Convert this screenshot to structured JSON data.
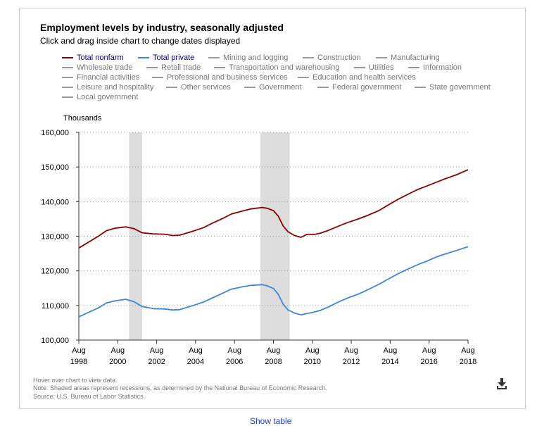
{
  "header": {
    "title": "Employment levels by industry, seasonally adjusted",
    "subtitle": "Click and drag inside chart to change dates displayed"
  },
  "legend": [
    {
      "label": "Total nonfarm",
      "color": "#8b0000",
      "active": true
    },
    {
      "label": "Total private",
      "color": "#3d86d8",
      "active": true
    },
    {
      "label": "Mining and logging",
      "color": "#999999",
      "active": false
    },
    {
      "label": "Construction",
      "color": "#999999",
      "active": false
    },
    {
      "label": "Manufacturing",
      "color": "#999999",
      "active": false
    },
    {
      "label": "Wholesale trade",
      "color": "#999999",
      "active": false
    },
    {
      "label": "Retail trade",
      "color": "#999999",
      "active": false
    },
    {
      "label": "Transportation and warehousing",
      "color": "#999999",
      "active": false
    },
    {
      "label": "Utilities",
      "color": "#999999",
      "active": false
    },
    {
      "label": "Information",
      "color": "#999999",
      "active": false
    },
    {
      "label": "Financial activities",
      "color": "#999999",
      "active": false
    },
    {
      "label": "Professional and business services",
      "color": "#999999",
      "active": false
    },
    {
      "label": "Education and health services",
      "color": "#999999",
      "active": false
    },
    {
      "label": "Leisure and hospitality",
      "color": "#999999",
      "active": false
    },
    {
      "label": "Other services",
      "color": "#999999",
      "active": false
    },
    {
      "label": "Government",
      "color": "#999999",
      "active": false
    },
    {
      "label": "Federal government",
      "color": "#999999",
      "active": false
    },
    {
      "label": "State government",
      "color": "#999999",
      "active": false
    },
    {
      "label": "Local government",
      "color": "#999999",
      "active": false
    }
  ],
  "footnotes": {
    "hover": "Hover over chart to view data.",
    "note": "Note: Shaded areas represent recessions, as determined by the National Bureau of Economic Research.",
    "source": "Source: U.S. Bureau of Labor Statistics."
  },
  "download_icon": "download-icon",
  "show_table_label": "Show table",
  "chart_data": {
    "type": "line",
    "ylabel": "Thousands",
    "ylim": [
      100000,
      160000
    ],
    "yticks": [
      100000,
      110000,
      120000,
      130000,
      140000,
      150000,
      160000
    ],
    "ytick_labels": [
      "100,000",
      "110,000",
      "120,000",
      "130,000",
      "140,000",
      "150,000",
      "160,000"
    ],
    "xlim": [
      "1998-08",
      "2018-08"
    ],
    "xticks": [
      {
        "month": "Aug",
        "year": "1998",
        "date": "1998-08"
      },
      {
        "month": "Aug",
        "year": "2000",
        "date": "2000-08"
      },
      {
        "month": "Aug",
        "year": "2002",
        "date": "2002-08"
      },
      {
        "month": "Aug",
        "year": "2004",
        "date": "2004-08"
      },
      {
        "month": "Aug",
        "year": "2006",
        "date": "2006-08"
      },
      {
        "month": "Aug",
        "year": "2008",
        "date": "2008-08"
      },
      {
        "month": "Aug",
        "year": "2010",
        "date": "2010-08"
      },
      {
        "month": "Aug",
        "year": "2012",
        "date": "2012-08"
      },
      {
        "month": "Aug",
        "year": "2014",
        "date": "2014-08"
      },
      {
        "month": "Aug",
        "year": "2016",
        "date": "2016-08"
      },
      {
        "month": "Aug",
        "year": "2018",
        "date": "2018-08"
      }
    ],
    "grid": true,
    "recessions": [
      {
        "start": "2001-03",
        "end": "2001-11"
      },
      {
        "start": "2007-12",
        "end": "2009-06"
      }
    ],
    "series": [
      {
        "name": "Total nonfarm",
        "color": "#8b0000",
        "points": [
          [
            "1998-08",
            126600
          ],
          [
            "1999-01",
            128000
          ],
          [
            "1999-08",
            130000
          ],
          [
            "2000-01",
            131600
          ],
          [
            "2000-06",
            132300
          ],
          [
            "2001-01",
            132700
          ],
          [
            "2001-06",
            132200
          ],
          [
            "2001-11",
            131000
          ],
          [
            "2002-06",
            130700
          ],
          [
            "2003-01",
            130600
          ],
          [
            "2003-06",
            130200
          ],
          [
            "2003-10",
            130300
          ],
          [
            "2004-06",
            131400
          ],
          [
            "2005-01",
            132500
          ],
          [
            "2005-06",
            133700
          ],
          [
            "2006-01",
            135200
          ],
          [
            "2006-06",
            136400
          ],
          [
            "2007-01",
            137300
          ],
          [
            "2007-06",
            137900
          ],
          [
            "2008-01",
            138300
          ],
          [
            "2008-04",
            138100
          ],
          [
            "2008-08",
            137400
          ],
          [
            "2008-11",
            135800
          ],
          [
            "2009-02",
            133000
          ],
          [
            "2009-05",
            131300
          ],
          [
            "2009-09",
            130200
          ],
          [
            "2010-01",
            129700
          ],
          [
            "2010-05",
            130600
          ],
          [
            "2010-09",
            130500
          ],
          [
            "2011-01",
            130900
          ],
          [
            "2011-06",
            131700
          ],
          [
            "2012-01",
            133100
          ],
          [
            "2012-06",
            134000
          ],
          [
            "2013-01",
            135100
          ],
          [
            "2013-06",
            136000
          ],
          [
            "2014-01",
            137400
          ],
          [
            "2014-06",
            138800
          ],
          [
            "2015-01",
            140700
          ],
          [
            "2015-06",
            141900
          ],
          [
            "2016-01",
            143500
          ],
          [
            "2016-06",
            144400
          ],
          [
            "2017-01",
            145700
          ],
          [
            "2017-06",
            146600
          ],
          [
            "2018-01",
            147800
          ],
          [
            "2018-08",
            149200
          ]
        ]
      },
      {
        "name": "Total private",
        "color": "#3d86d8",
        "points": [
          [
            "1998-08",
            106700
          ],
          [
            "1999-01",
            107800
          ],
          [
            "1999-08",
            109300
          ],
          [
            "2000-01",
            110700
          ],
          [
            "2000-06",
            111300
          ],
          [
            "2001-01",
            111800
          ],
          [
            "2001-06",
            111100
          ],
          [
            "2001-11",
            109700
          ],
          [
            "2002-06",
            109100
          ],
          [
            "2003-01",
            109000
          ],
          [
            "2003-06",
            108700
          ],
          [
            "2003-10",
            108800
          ],
          [
            "2004-06",
            109900
          ],
          [
            "2005-01",
            111000
          ],
          [
            "2005-06",
            112100
          ],
          [
            "2006-01",
            113600
          ],
          [
            "2006-06",
            114700
          ],
          [
            "2007-01",
            115400
          ],
          [
            "2007-06",
            115800
          ],
          [
            "2008-01",
            116000
          ],
          [
            "2008-04",
            115700
          ],
          [
            "2008-08",
            114900
          ],
          [
            "2008-11",
            113200
          ],
          [
            "2009-02",
            110400
          ],
          [
            "2009-05",
            108700
          ],
          [
            "2009-09",
            107800
          ],
          [
            "2010-01",
            107300
          ],
          [
            "2010-05",
            107700
          ],
          [
            "2010-09",
            108100
          ],
          [
            "2011-01",
            108600
          ],
          [
            "2011-06",
            109600
          ],
          [
            "2012-01",
            111200
          ],
          [
            "2012-06",
            112200
          ],
          [
            "2013-01",
            113400
          ],
          [
            "2013-06",
            114500
          ],
          [
            "2014-01",
            116100
          ],
          [
            "2014-06",
            117400
          ],
          [
            "2015-01",
            119200
          ],
          [
            "2015-06",
            120300
          ],
          [
            "2016-01",
            121800
          ],
          [
            "2016-06",
            122700
          ],
          [
            "2017-01",
            124100
          ],
          [
            "2017-06",
            124900
          ],
          [
            "2018-01",
            125900
          ],
          [
            "2018-08",
            127000
          ]
        ]
      }
    ]
  }
}
